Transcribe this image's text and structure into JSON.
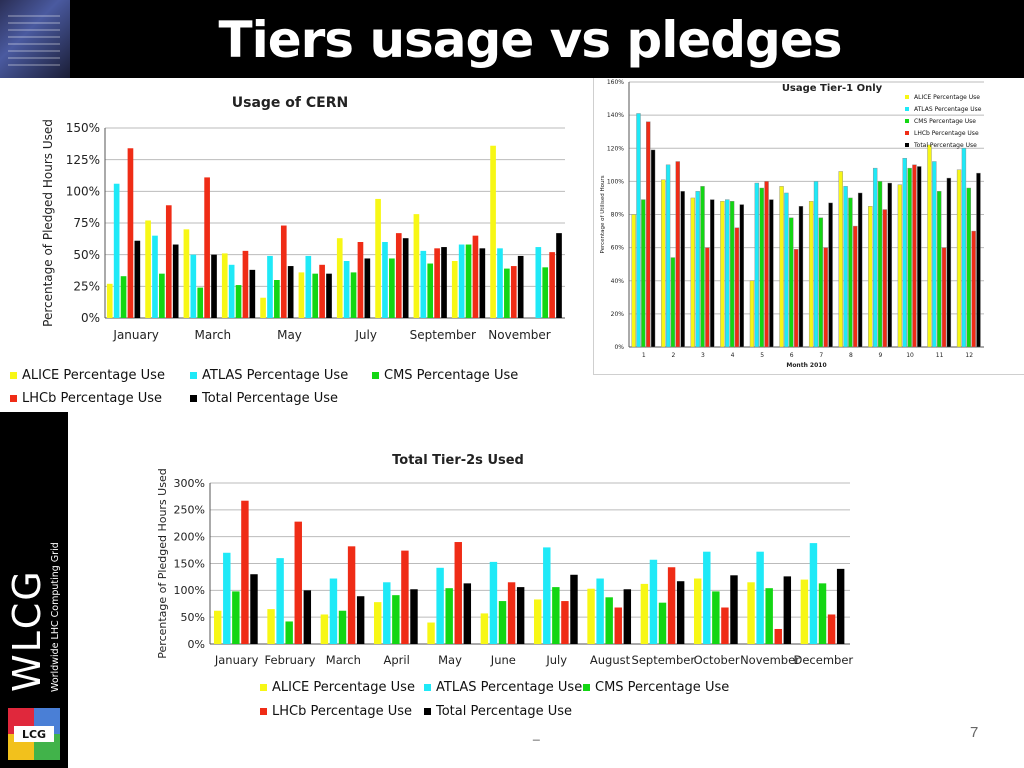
{
  "slide": {
    "title": "Tiers usage vs pledges",
    "page_number": "7",
    "footer_mark": "_",
    "side_logo_text": "WLCG",
    "side_logo_sub": "Worldwide LHC Computing Grid",
    "lcg_logo_text": "LCG"
  },
  "colors": {
    "ALICE": "#f7f716",
    "ATLAS": "#1fe9f7",
    "CMS": "#13d613",
    "LHCb": "#ef2c16",
    "Total": "#000000"
  },
  "chart_data": [
    {
      "type": "bar",
      "title": "Usage of CERN",
      "xlabel": "",
      "ylabel": "Percentage of Pledged Hours Used",
      "ylim": [
        0,
        150
      ],
      "yticks": [
        "0%",
        "25%",
        "50%",
        "75%",
        "100%",
        "125%",
        "150%"
      ],
      "categories": [
        "January",
        "February",
        "March",
        "April",
        "May",
        "June",
        "July",
        "August",
        "September",
        "October",
        "November",
        "December"
      ],
      "category_labels_shown": [
        "January",
        "",
        "March",
        "",
        "May",
        "",
        "July",
        "",
        "September",
        "",
        "November",
        ""
      ],
      "legend": "bottom",
      "grid": true,
      "series": [
        {
          "name": "ALICE Percentage Use",
          "values": [
            27,
            77,
            70,
            51,
            16,
            36,
            63,
            94,
            82,
            45,
            136,
            null
          ]
        },
        {
          "name": "ATLAS Percentage Use",
          "values": [
            106,
            65,
            50,
            42,
            49,
            49,
            45,
            60,
            53,
            58,
            55,
            56
          ]
        },
        {
          "name": "CMS Percentage Use",
          "values": [
            33,
            35,
            24,
            26,
            30,
            35,
            36,
            47,
            43,
            58,
            39,
            40
          ]
        },
        {
          "name": "LHCb Percentage Use",
          "values": [
            134,
            89,
            111,
            53,
            73,
            42,
            60,
            67,
            55,
            65,
            41,
            52
          ]
        },
        {
          "name": "Total Percentage Use",
          "values": [
            61,
            58,
            50,
            38,
            41,
            35,
            47,
            63,
            56,
            55,
            49,
            67
          ]
        }
      ]
    },
    {
      "type": "bar",
      "title": "Usage Tier-1 Only",
      "xlabel": "Month 2010",
      "ylabel": "Percentage of Utilised Hours",
      "ylim": [
        0,
        160
      ],
      "yticks": [
        "0%",
        "20%",
        "40%",
        "60%",
        "80%",
        "100%",
        "120%",
        "140%",
        "160%"
      ],
      "categories": [
        "1",
        "2",
        "3",
        "4",
        "5",
        "6",
        "7",
        "8",
        "9",
        "10",
        "11",
        "12"
      ],
      "legend": "top-right",
      "grid": true,
      "series": [
        {
          "name": "ALICE Percentage Use",
          "values": [
            80,
            101,
            90,
            88,
            40,
            97,
            88,
            106,
            85,
            98,
            122,
            107
          ]
        },
        {
          "name": "ATLAS Percentage Use",
          "values": [
            141,
            110,
            94,
            89,
            99,
            93,
            100,
            97,
            108,
            114,
            112,
            120
          ]
        },
        {
          "name": "CMS Percentage Use",
          "values": [
            89,
            54,
            97,
            88,
            96,
            78,
            78,
            90,
            100,
            108,
            94,
            96
          ]
        },
        {
          "name": "LHCb Percentage Use",
          "values": [
            136,
            112,
            60,
            72,
            100,
            59,
            60,
            73,
            83,
            110,
            60,
            70
          ]
        },
        {
          "name": "Total Percentage Use",
          "values": [
            119,
            94,
            89,
            86,
            89,
            85,
            87,
            93,
            99,
            109,
            102,
            105
          ]
        }
      ]
    },
    {
      "type": "bar",
      "title": "Total Tier-2s Used",
      "xlabel": "",
      "ylabel": "Percentage of Pledged Hours Used",
      "ylim": [
        0,
        300
      ],
      "yticks": [
        "0%",
        "50%",
        "100%",
        "150%",
        "200%",
        "250%",
        "300%"
      ],
      "categories": [
        "January",
        "February",
        "March",
        "April",
        "May",
        "June",
        "July",
        "August",
        "September",
        "October",
        "November",
        "December"
      ],
      "legend": "bottom",
      "grid": true,
      "series": [
        {
          "name": "ALICE Percentage Use",
          "values": [
            62,
            65,
            55,
            78,
            40,
            57,
            83,
            103,
            112,
            122,
            115,
            120
          ]
        },
        {
          "name": "ATLAS Percentage Use",
          "values": [
            170,
            160,
            122,
            115,
            142,
            153,
            180,
            122,
            157,
            172,
            172,
            188
          ]
        },
        {
          "name": "CMS Percentage Use",
          "values": [
            98,
            42,
            62,
            91,
            104,
            80,
            106,
            87,
            77,
            98,
            104,
            113
          ]
        },
        {
          "name": "LHCb Percentage Use",
          "values": [
            267,
            228,
            182,
            174,
            190,
            115,
            80,
            68,
            143,
            68,
            28,
            55
          ]
        },
        {
          "name": "Total Percentage Use",
          "values": [
            130,
            100,
            89,
            102,
            113,
            106,
            129,
            102,
            117,
            128,
            126,
            140
          ]
        }
      ]
    }
  ]
}
